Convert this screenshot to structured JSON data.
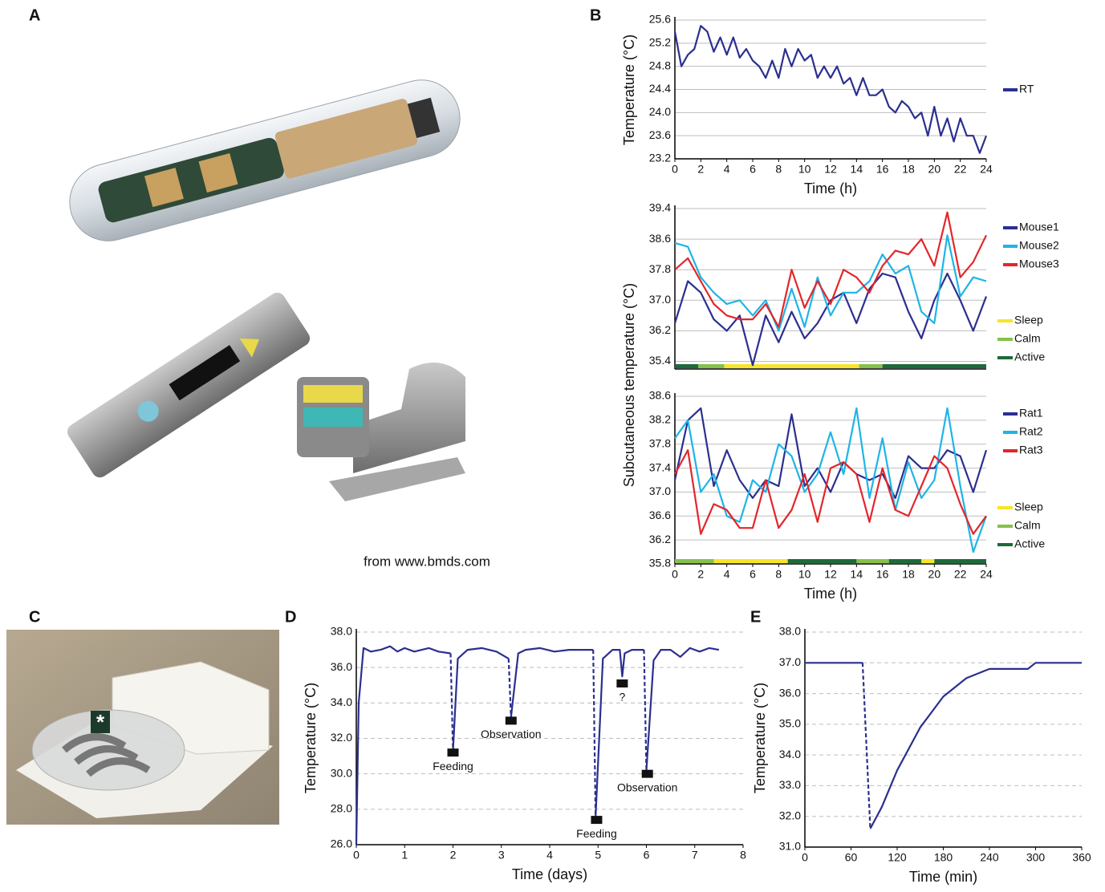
{
  "panel_labels": [
    "A",
    "B",
    "C",
    "D",
    "E"
  ],
  "credit": "from www.bmds.com",
  "photo_marker": "*",
  "chart_data": [
    {
      "type": "line",
      "ylabel": "Temperature (°C)",
      "xlabel": "Time (h)",
      "xlim": [
        0,
        24
      ],
      "xticks": [
        0,
        2,
        4,
        6,
        8,
        10,
        12,
        14,
        16,
        18,
        20,
        22,
        24
      ],
      "ylim": [
        23.2,
        25.6
      ],
      "yticks": [
        23.2,
        23.6,
        {
          "value": 24,
          "label": "24.0"
        },
        24.4,
        24.8,
        25.2,
        25.6
      ],
      "grid": true,
      "x": [
        0,
        0.5,
        1,
        1.5,
        2,
        2.5,
        3,
        3.5,
        4,
        4.5,
        5,
        5.5,
        6,
        6.5,
        7,
        7.5,
        8,
        8.5,
        9,
        9.5,
        10,
        10.5,
        11,
        11.5,
        12,
        12.5,
        13,
        13.5,
        14,
        14.5,
        15,
        15.5,
        16,
        16.5,
        17,
        17.5,
        18,
        18.5,
        19,
        19.5,
        20,
        20.5,
        21,
        21.5,
        22,
        22.5,
        23,
        23.5,
        24
      ],
      "series": [
        {
          "name": "RT",
          "color": "#2b2f8f",
          "values": [
            25.4,
            24.8,
            25.0,
            25.1,
            25.5,
            25.4,
            25.05,
            25.3,
            25.0,
            25.3,
            24.95,
            25.1,
            24.9,
            24.8,
            24.6,
            24.9,
            24.6,
            25.1,
            24.8,
            25.1,
            24.9,
            25.0,
            24.6,
            24.8,
            24.6,
            24.8,
            24.5,
            24.6,
            24.3,
            24.6,
            24.3,
            24.3,
            24.4,
            24.1,
            24.0,
            24.2,
            24.1,
            23.9,
            24.0,
            23.6,
            24.1,
            23.6,
            23.9,
            23.5,
            23.9,
            23.6,
            23.6,
            23.3,
            23.6
          ]
        }
      ]
    },
    {
      "type": "line",
      "ylabel": "Subcutaneous temperature (°C)",
      "xlim": [
        0,
        24
      ],
      "ylim": [
        35.2,
        39.4
      ],
      "yticks": [
        35.4,
        36.2,
        {
          "value": 37,
          "label": "37.0"
        },
        37.8,
        38.6,
        39.4
      ],
      "grid": true,
      "x": [
        0,
        1,
        2,
        3,
        4,
        5,
        6,
        7,
        8,
        9,
        10,
        11,
        12,
        13,
        14,
        15,
        16,
        17,
        18,
        19,
        20,
        21,
        22,
        23,
        24
      ],
      "series": [
        {
          "name": "Mouse1",
          "color": "#2b2f8f",
          "values": [
            36.4,
            37.5,
            37.2,
            36.5,
            36.2,
            36.6,
            35.3,
            36.6,
            35.9,
            36.7,
            36.0,
            36.4,
            37.0,
            37.2,
            36.4,
            37.3,
            37.7,
            37.6,
            36.7,
            36.0,
            37.0,
            37.7,
            37.0,
            36.2,
            37.1
          ]
        },
        {
          "name": "Mouse2",
          "color": "#1fb4e6",
          "values": [
            38.5,
            38.4,
            37.6,
            37.2,
            36.9,
            37.0,
            36.6,
            37.0,
            36.2,
            37.3,
            36.3,
            37.6,
            36.6,
            37.2,
            37.2,
            37.5,
            38.2,
            37.7,
            37.9,
            36.7,
            36.4,
            38.7,
            37.1,
            37.6,
            37.5
          ]
        },
        {
          "name": "Mouse3",
          "color": "#e3262b",
          "values": [
            37.8,
            38.1,
            37.5,
            36.9,
            36.6,
            36.5,
            36.5,
            36.9,
            36.3,
            37.8,
            36.8,
            37.5,
            36.9,
            37.8,
            37.6,
            37.2,
            37.9,
            38.3,
            38.2,
            38.6,
            37.9,
            39.3,
            37.6,
            38.0,
            38.7
          ]
        }
      ],
      "states": [
        {
          "name": "Sleep",
          "color": "#f6e52a",
          "segments": [
            [
              3.8,
              14.2
            ]
          ]
        },
        {
          "name": "Calm",
          "color": "#86c14b",
          "segments": [
            [
              1.8,
              3.8
            ],
            [
              14.2,
              16
            ]
          ]
        },
        {
          "name": "Active",
          "color": "#1d6a3a",
          "segments": [
            [
              0,
              1.8
            ],
            [
              16,
              24
            ]
          ]
        }
      ]
    },
    {
      "type": "line",
      "xlabel": "Time (h)",
      "xlim": [
        0,
        24
      ],
      "xticks": [
        0,
        2,
        4,
        6,
        8,
        10,
        12,
        14,
        16,
        18,
        20,
        22,
        24
      ],
      "ylim": [
        35.8,
        38.6
      ],
      "yticks": [
        35.8,
        36.2,
        36.6,
        {
          "value": 37,
          "label": "37.0"
        },
        37.4,
        37.8,
        38.2,
        38.6
      ],
      "grid": true,
      "x": [
        0,
        1,
        2,
        3,
        4,
        5,
        6,
        7,
        8,
        9,
        10,
        11,
        12,
        13,
        14,
        15,
        16,
        17,
        18,
        19,
        20,
        21,
        22,
        23,
        24
      ],
      "series": [
        {
          "name": "Rat1",
          "color": "#2b2f8f",
          "values": [
            37.2,
            38.2,
            38.4,
            37.1,
            37.7,
            37.2,
            36.9,
            37.2,
            37.1,
            38.3,
            37.1,
            37.4,
            37.0,
            37.5,
            37.3,
            37.2,
            37.3,
            36.9,
            37.6,
            37.4,
            37.4,
            37.7,
            37.6,
            37.0,
            37.7
          ]
        },
        {
          "name": "Rat2",
          "color": "#1fb4e6",
          "values": [
            37.9,
            38.2,
            37.0,
            37.3,
            36.6,
            36.5,
            37.2,
            37.0,
            37.8,
            37.6,
            37.0,
            37.3,
            38.0,
            37.3,
            38.4,
            36.9,
            37.9,
            36.7,
            37.5,
            36.9,
            37.2,
            38.4,
            37.1,
            36.0,
            36.6
          ]
        },
        {
          "name": "Rat3",
          "color": "#e3262b",
          "values": [
            37.3,
            37.7,
            36.3,
            36.8,
            36.7,
            36.4,
            36.4,
            37.2,
            36.4,
            36.7,
            37.3,
            36.5,
            37.4,
            37.5,
            37.3,
            36.5,
            37.4,
            36.7,
            36.6,
            37.1,
            37.6,
            37.4,
            36.8,
            36.3,
            36.6
          ]
        }
      ],
      "states": [
        {
          "name": "Sleep",
          "color": "#f6e52a",
          "segments": [
            [
              3,
              8.7
            ],
            [
              19,
              20
            ]
          ]
        },
        {
          "name": "Calm",
          "color": "#86c14b",
          "segments": [
            [
              0,
              3
            ],
            [
              14,
              16.5
            ]
          ]
        },
        {
          "name": "Active",
          "color": "#1d6a3a",
          "segments": [
            [
              8.7,
              14
            ],
            [
              16.5,
              19
            ],
            [
              20,
              24
            ]
          ]
        }
      ]
    },
    {
      "type": "line",
      "ylabel": "Temperature (°C)",
      "xlabel": "Time (days)",
      "xlim": [
        0,
        8
      ],
      "xticks": [
        0,
        1,
        2,
        3,
        4,
        5,
        6,
        7,
        8
      ],
      "ylim": [
        26,
        38
      ],
      "yticks": [
        {
          "value": 26,
          "label": "26.0"
        },
        {
          "value": 28,
          "label": "28.0"
        },
        {
          "value": 30,
          "label": "30.0"
        },
        {
          "value": 32,
          "label": "32.0"
        },
        {
          "value": 34,
          "label": "34.0"
        },
        {
          "value": 36,
          "label": "36.0"
        },
        {
          "value": 38,
          "label": "38.0"
        }
      ],
      "grid": true,
      "series": [
        {
          "color": "#2b2f8f",
          "style": "solid",
          "x": [
            0,
            0.05,
            0.15,
            0.3,
            0.5,
            0.7,
            0.85,
            1.0,
            1.2,
            1.5,
            1.7,
            1.95,
            null,
            2.0,
            2.1,
            2.3,
            2.6,
            2.9,
            3.15,
            null,
            3.2,
            3.35,
            3.5,
            3.8,
            4.1,
            4.4,
            4.7,
            4.9,
            null,
            4.95,
            5.1,
            5.3,
            5.45,
            5.5,
            5.55,
            5.7,
            5.95,
            null,
            6.0,
            6.15,
            6.3,
            6.5,
            6.7,
            6.9,
            7.1,
            7.3,
            7.5
          ],
          "values": [
            26,
            34,
            37.1,
            36.9,
            37.0,
            37.2,
            36.9,
            37.1,
            36.9,
            37.1,
            36.9,
            36.8,
            null,
            31.3,
            36.5,
            37.0,
            37.1,
            36.9,
            36.5,
            null,
            33.2,
            36.8,
            37.0,
            37.1,
            36.9,
            37.0,
            37.0,
            37.0,
            null,
            27.6,
            36.5,
            37.0,
            37.0,
            35.5,
            36.8,
            37.0,
            37.0,
            null,
            30.2,
            36.4,
            37.0,
            37.0,
            36.6,
            37.1,
            36.9,
            37.1,
            37.0
          ]
        },
        {
          "color": "#2b2f8f",
          "style": "dashed",
          "x": [
            1.95,
            2.0,
            null,
            3.15,
            3.2,
            null,
            4.9,
            4.95,
            null,
            5.95,
            6.0
          ],
          "values": [
            36.8,
            31.3,
            null,
            36.5,
            33.2,
            null,
            37.0,
            27.6,
            null,
            37.0,
            30.2
          ]
        }
      ],
      "annotations": [
        {
          "text": "Feeding",
          "x": 2.0,
          "y": 31.2
        },
        {
          "text": "Observation",
          "x": 3.2,
          "y": 33.0
        },
        {
          "text": "Feeding",
          "x": 4.97,
          "y": 27.4
        },
        {
          "text": "?",
          "x": 5.5,
          "y": 35.1
        },
        {
          "text": "Observation",
          "x": 6.02,
          "y": 30.0
        }
      ]
    },
    {
      "type": "line",
      "ylabel": "Temperature (°C)",
      "xlabel": "Time (min)",
      "xlim": [
        0,
        360
      ],
      "xticks": [
        0,
        60,
        120,
        180,
        240,
        300,
        360
      ],
      "ylim": [
        31,
        38
      ],
      "yticks": [
        {
          "value": 31,
          "label": "31.0"
        },
        {
          "value": 32,
          "label": "32.0"
        },
        {
          "value": 33,
          "label": "33.0"
        },
        {
          "value": 34,
          "label": "34.0"
        },
        {
          "value": 35,
          "label": "35.0"
        },
        {
          "value": 36,
          "label": "36.0"
        },
        {
          "value": 37,
          "label": "37.0"
        },
        {
          "value": 38,
          "label": "38.0"
        }
      ],
      "grid": true,
      "series": [
        {
          "color": "#2b2f8f",
          "style": "solid",
          "x": [
            0,
            75,
            null,
            85,
            100,
            120,
            150,
            180,
            210,
            240,
            270,
            290,
            300,
            360
          ],
          "values": [
            37.0,
            37.0,
            null,
            31.6,
            32.3,
            33.5,
            34.9,
            35.9,
            36.5,
            36.8,
            36.8,
            36.8,
            37.0,
            37.0
          ]
        },
        {
          "color": "#2b2f8f",
          "style": "dashed",
          "x": [
            75,
            85
          ],
          "values": [
            37.0,
            31.6
          ]
        }
      ]
    }
  ]
}
